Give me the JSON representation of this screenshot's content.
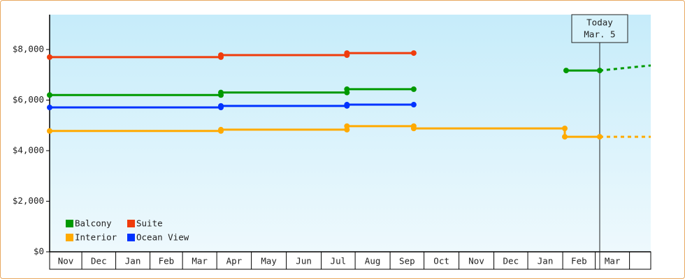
{
  "chart_data": {
    "type": "line",
    "xlim": [
      0,
      17.55
    ],
    "xticks": [
      {
        "value": 0,
        "label": "Nov"
      },
      {
        "value": 0.94,
        "label": "Dec"
      },
      {
        "value": 1.93,
        "label": "Jan"
      },
      {
        "value": 2.93,
        "label": "Feb"
      },
      {
        "value": 3.88,
        "label": "Mar"
      },
      {
        "value": 4.88,
        "label": "Apr"
      },
      {
        "value": 5.89,
        "label": "May"
      },
      {
        "value": 6.91,
        "label": "Jun"
      },
      {
        "value": 7.93,
        "label": "Jul"
      },
      {
        "value": 8.92,
        "label": "Aug"
      },
      {
        "value": 9.94,
        "label": "Sep"
      },
      {
        "value": 10.93,
        "label": "Oct"
      },
      {
        "value": 11.95,
        "label": "Nov"
      },
      {
        "value": 12.97,
        "label": "Dec"
      },
      {
        "value": 13.96,
        "label": "Jan"
      },
      {
        "value": 14.98,
        "label": "Feb"
      },
      {
        "value": 15.93,
        "label": "Mar"
      },
      {
        "value": 16.93,
        "label": ""
      }
    ],
    "ylim": [
      0,
      9380
    ],
    "yticks": [
      {
        "value": 0,
        "label": "$0"
      },
      {
        "value": 2000,
        "label": "$2,000"
      },
      {
        "value": 4000,
        "label": "$4,000"
      },
      {
        "value": 6000,
        "label": "$6,000"
      },
      {
        "value": 8000,
        "label": "$8,000"
      }
    ],
    "today": {
      "x": 16.06,
      "label": [
        "Today",
        "Mar. 5"
      ]
    },
    "series": [
      {
        "name": "Balcony",
        "color": "#009900",
        "x": [
          0,
          5.0,
          5.0,
          8.68,
          8.68,
          10.63,
          12.5,
          15.08,
          16.06
        ],
        "values": [
          6200,
          6200,
          6300,
          6300,
          6430,
          6430,
          null,
          7170,
          7170
        ],
        "forecast": {
          "x": [
            16.06,
            17.55
          ],
          "values": [
            7170,
            7370
          ]
        }
      },
      {
        "name": "Suite",
        "color": "#f03c0c",
        "x": [
          0,
          5.0,
          5.0,
          8.68,
          8.68,
          10.63
        ],
        "values": [
          7700,
          7700,
          7780,
          7780,
          7860,
          7860
        ]
      },
      {
        "name": "Interior",
        "color": "#ffaa00",
        "x": [
          0,
          5.0,
          5.0,
          8.68,
          8.68,
          10.63,
          10.63,
          15.04,
          15.04,
          16.06
        ],
        "values": [
          4780,
          4780,
          4830,
          4830,
          4970,
          4970,
          4880,
          4880,
          4550,
          4550
        ],
        "forecast": {
          "x": [
            16.06,
            17.55
          ],
          "values": [
            4550,
            4550
          ]
        }
      },
      {
        "name": "Ocean View",
        "color": "#0033ff",
        "x": [
          0,
          5.0,
          5.0,
          8.68,
          8.68,
          10.63
        ],
        "values": [
          5710,
          5710,
          5770,
          5770,
          5820,
          5820
        ]
      }
    ]
  }
}
